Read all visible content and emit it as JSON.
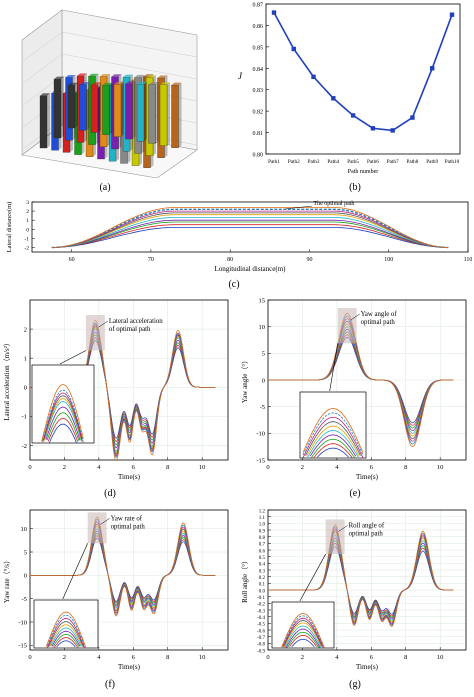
{
  "panel_labels": {
    "a": "(a)",
    "b": "(b)",
    "c": "(c)",
    "d": "(d)",
    "e": "(e)",
    "f": "(f)",
    "g": "(g)"
  },
  "chart_data": [
    {
      "id": "a",
      "type": "bar",
      "note": "3D bar chart; axis labels are illegible in the original",
      "colors": [
        "#333333",
        "#1f4fd8",
        "#d62020",
        "#1aa01a",
        "#e08a1a",
        "#7a1fb0",
        "#20b4c8",
        "#888888",
        "#c8c800",
        "#b5651d"
      ],
      "heights": [
        [
          0.55,
          0.6,
          0.62,
          0.65,
          0.7,
          0.75,
          0.8,
          0.85,
          0.9,
          0.96
        ],
        [
          0.62,
          0.66,
          0.7,
          0.72,
          0.74,
          0.76,
          0.78,
          0.8,
          0.82,
          0.84
        ],
        [
          0.45,
          0.48,
          0.5,
          0.52,
          0.55,
          0.58,
          0.6,
          0.62,
          0.64,
          0.66
        ]
      ]
    },
    {
      "id": "b",
      "type": "line",
      "categories": [
        "Path1",
        "Path2",
        "Path3",
        "Path4",
        "Path5",
        "Path6",
        "Path7",
        "Path8",
        "Path9",
        "Path10"
      ],
      "values": [
        0.866,
        0.849,
        0.836,
        0.826,
        0.818,
        0.812,
        0.811,
        0.817,
        0.84,
        0.865
      ],
      "xlabel": "Path number",
      "ylabel": "J",
      "ylim": [
        0.8,
        0.87
      ],
      "yticks": [
        0.8,
        0.81,
        0.82,
        0.83,
        0.84,
        0.85,
        0.86,
        0.87
      ],
      "color": "#1f3fbf"
    },
    {
      "id": "c",
      "type": "line",
      "xlabel": "Longitudinal distance(m)",
      "ylabel": "Lateral distance(m)",
      "xlim": [
        55,
        110
      ],
      "ylim": [
        -2.5,
        3
      ],
      "xticks": [
        60,
        70,
        80,
        90,
        100,
        110
      ],
      "yticks": [
        -2,
        -1,
        0,
        1,
        2,
        3
      ],
      "x_start": 57.5,
      "x_end": 107.5,
      "y_start": -2,
      "plateau_start": 73,
      "plateau_end": 93,
      "levels": [
        0.2,
        0.5,
        0.8,
        1.0,
        1.3,
        1.6,
        1.8,
        2.0,
        2.2,
        2.4
      ],
      "annotation": "The optimal path",
      "optimal_index": 8
    },
    {
      "id": "d",
      "type": "line",
      "xlabel": "Time(s)",
      "ylabel": "Lateral acceleration（m/s²）",
      "xlim": [
        0,
        11.5
      ],
      "ylim": [
        -2.5,
        3
      ],
      "xticks": [
        0,
        2,
        4,
        6,
        8,
        10
      ],
      "yticks": [
        -2,
        -1,
        0,
        1,
        2
      ],
      "annotation": "Lateral acceleration\nof optimal path",
      "peaks": [
        {
          "t": 3.8,
          "a": 1.0,
          "w": 0.5
        },
        {
          "t": 5.0,
          "a": -1.1,
          "w": 0.4
        },
        {
          "t": 5.8,
          "a": -0.8,
          "w": 0.3
        },
        {
          "t": 6.5,
          "a": -0.6,
          "w": 0.3
        },
        {
          "t": 7.1,
          "a": -1.0,
          "w": 0.35
        },
        {
          "t": 8.6,
          "a": 0.85,
          "w": 0.45
        }
      ],
      "scales": [
        1.6,
        1.7,
        1.8,
        1.9,
        2.0,
        2.05,
        2.1,
        2.15,
        2.2,
        2.3
      ]
    },
    {
      "id": "e",
      "type": "line",
      "xlabel": "Time(s)",
      "ylabel": "Yaw angle（°）",
      "xlim": [
        0,
        11.5
      ],
      "ylim": [
        -15,
        15
      ],
      "xticks": [
        0,
        2,
        4,
        6,
        8,
        10
      ],
      "yticks": [
        -15,
        -10,
        -5,
        0,
        5,
        10,
        15
      ],
      "annotation": "Yaw angle of\noptimal path",
      "peaks": [
        {
          "t": 4.6,
          "a": 1.0,
          "w": 0.7
        },
        {
          "t": 8.4,
          "a": -1.0,
          "w": 0.7
        }
      ],
      "scales": [
        8.0,
        8.5,
        9.0,
        9.5,
        10.0,
        10.5,
        11.0,
        11.5,
        12.0,
        12.5
      ]
    },
    {
      "id": "f",
      "type": "line",
      "xlabel": "Time(s)",
      "ylabel": "Yaw rate（°/s）",
      "xlim": [
        0,
        11.5
      ],
      "ylim": [
        -16,
        14
      ],
      "xticks": [
        0,
        2,
        4,
        6,
        8,
        10
      ],
      "yticks": [
        -15,
        -10,
        -5,
        0,
        5,
        10
      ],
      "annotation": "Yaw rate of\noptimal path",
      "peaks": [
        {
          "t": 3.9,
          "a": 1.0,
          "w": 0.45
        },
        {
          "t": 5.0,
          "a": -0.7,
          "w": 0.35
        },
        {
          "t": 5.9,
          "a": -0.6,
          "w": 0.3
        },
        {
          "t": 6.6,
          "a": -0.55,
          "w": 0.3
        },
        {
          "t": 7.2,
          "a": -0.65,
          "w": 0.35
        },
        {
          "t": 8.9,
          "a": 0.9,
          "w": 0.45
        }
      ],
      "scales": [
        8.0,
        8.5,
        9.0,
        9.5,
        10.0,
        10.5,
        11.0,
        11.5,
        12.0,
        12.5
      ]
    },
    {
      "id": "g",
      "type": "line",
      "xlabel": "Time(s)",
      "ylabel": "Roll angle（°）",
      "xlim": [
        0,
        11.5
      ],
      "ylim": [
        -0.9,
        1.2
      ],
      "xticks": [
        0,
        2,
        4,
        6,
        8,
        10
      ],
      "yticks": [
        -0.9,
        -0.8,
        -0.7,
        -0.6,
        -0.5,
        -0.4,
        -0.3,
        -0.2,
        -0.1,
        0.0,
        0.1,
        0.2,
        0.3,
        0.4,
        0.5,
        0.6,
        0.7,
        0.8,
        0.9,
        1.0,
        1.1,
        1.2
      ],
      "annotation": "Roll angle of\noptimal path",
      "peaks": [
        {
          "t": 3.9,
          "a": 1.0,
          "w": 0.5
        },
        {
          "t": 5.0,
          "a": -0.55,
          "w": 0.35
        },
        {
          "t": 5.9,
          "a": -0.45,
          "w": 0.3
        },
        {
          "t": 6.6,
          "a": -0.45,
          "w": 0.3
        },
        {
          "t": 7.2,
          "a": -0.55,
          "w": 0.35
        },
        {
          "t": 9.0,
          "a": 0.9,
          "w": 0.5
        }
      ],
      "scales": [
        0.65,
        0.7,
        0.74,
        0.78,
        0.82,
        0.86,
        0.89,
        0.92,
        0.95,
        0.98
      ]
    }
  ],
  "series_colors": [
    "#1f3fbf",
    "#d62020",
    "#1aa01a",
    "#7a1fb0",
    "#20b4c8",
    "#e0a000",
    "#555555",
    "#c02080",
    "#2080c0",
    "#e06a10"
  ]
}
